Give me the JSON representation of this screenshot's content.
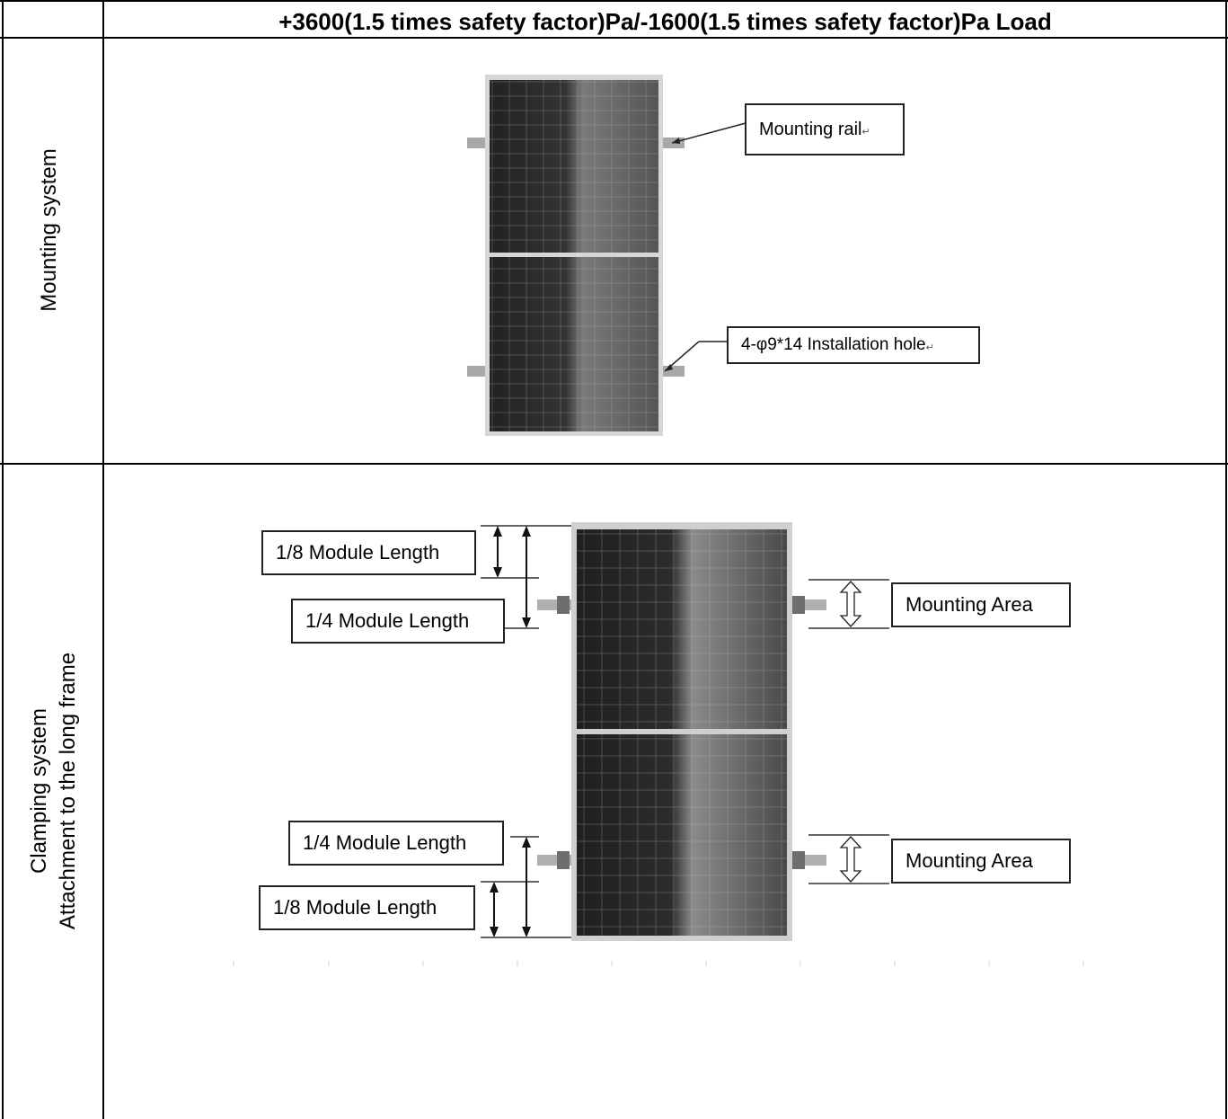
{
  "header": {
    "title": "+3600(1.5 times safety factor)Pa/-1600(1.5 times safety factor)Pa Load"
  },
  "rows": [
    {
      "label": "Mounting system",
      "callouts": {
        "rail": "Mounting rail",
        "rail_mark": "↵",
        "hole": "4-φ9*14 Installation hole",
        "hole_mark": "↵"
      }
    },
    {
      "label_line1": "Clamping system",
      "label_line2": "Attachment to the long frame",
      "callouts": {
        "eighth_top": "1/8 Module Length",
        "quarter_top": "1/4 Module Length",
        "quarter_bottom": "1/4 Module Length",
        "eighth_bottom": "1/8 Module Length",
        "area_top": "Mounting Area",
        "area_bottom": "Mounting Area"
      }
    }
  ],
  "colors": {
    "panel_dark": "#2a2a2a",
    "panel_light": "#8a8a8a",
    "frame": "#cfcfcf",
    "rail": "#a8a8a8"
  }
}
